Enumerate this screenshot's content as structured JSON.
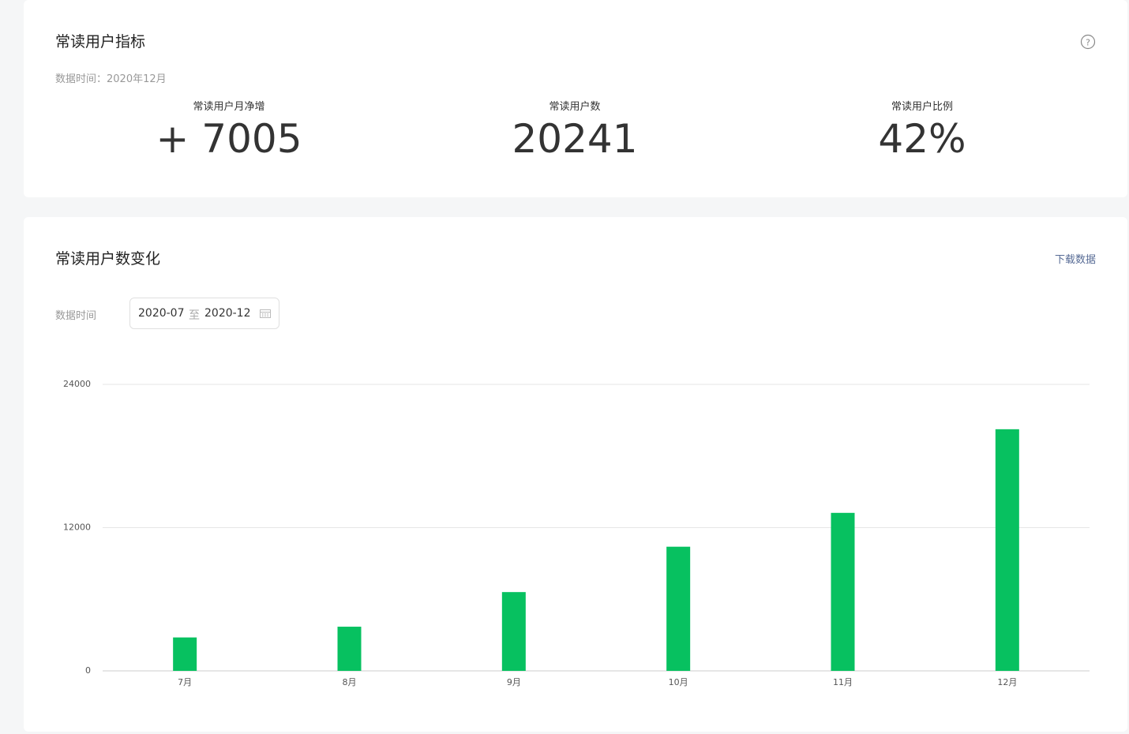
{
  "metrics_card": {
    "title": "常读用户指标",
    "date_label": "数据时间：2020年12月",
    "metrics": [
      {
        "label": "常读用户月净增",
        "value": "+ 7005"
      },
      {
        "label": "常读用户数",
        "value": "20241"
      },
      {
        "label": "常读用户比例",
        "value": "42%"
      }
    ]
  },
  "chart_card": {
    "title": "常读用户数变化",
    "download": "下载数据",
    "date_filter_label": "数据时间",
    "date_start": "2020-07",
    "date_separator": "至",
    "date_end": "2020-12"
  },
  "chart_data": {
    "type": "bar",
    "categories": [
      "7月",
      "8月",
      "9月",
      "10月",
      "11月",
      "12月"
    ],
    "values": [
      2800,
      3700,
      6600,
      10400,
      13236,
      20241
    ],
    "color": "#07c160",
    "ylim": [
      0,
      24000
    ],
    "yticks": [
      0,
      12000,
      24000
    ],
    "grid": true
  }
}
